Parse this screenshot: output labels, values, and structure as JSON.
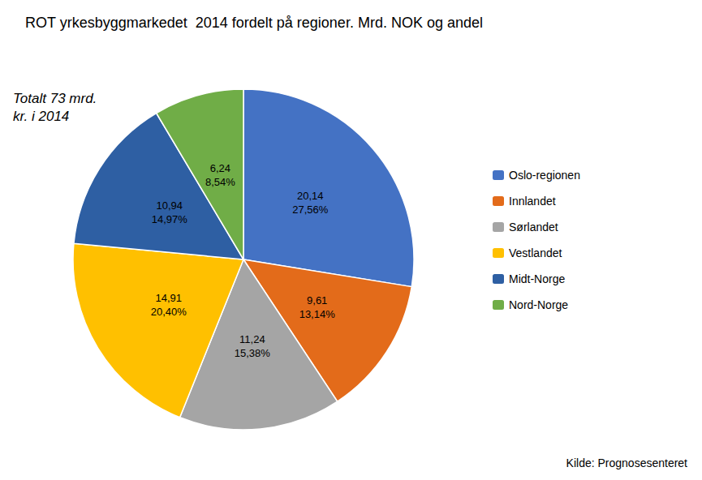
{
  "chart_data": {
    "type": "pie",
    "title": "ROT yrkesbyggmarkedet  2014 fordelt på regioner. Mrd. NOK og andel",
    "subtitle": "Totalt 73 mrd.\nkr. i 2014",
    "annotations": [
      "Kilde: Prognosesenteret"
    ],
    "categories": [
      "Oslo-regionen",
      "Innlandet",
      "Sørlandet",
      "Vestlandet",
      "Midt-Norge",
      "Nord-Norge"
    ],
    "values": [
      20.14,
      9.61,
      11.24,
      14.91,
      10.94,
      6.24
    ],
    "value_labels": [
      "20,14\n27,56%",
      "9,61\n13,14%",
      "11,24\n15,38%",
      "14,91\n20,40%",
      "10,94\n14,97%",
      "6,24\n8,54%"
    ],
    "colors": [
      "#4472C4",
      "#E36B1A",
      "#A5A5A5",
      "#FFC000",
      "#2E5FA3",
      "#70AD47"
    ],
    "data_labels": true,
    "legend": "right"
  }
}
